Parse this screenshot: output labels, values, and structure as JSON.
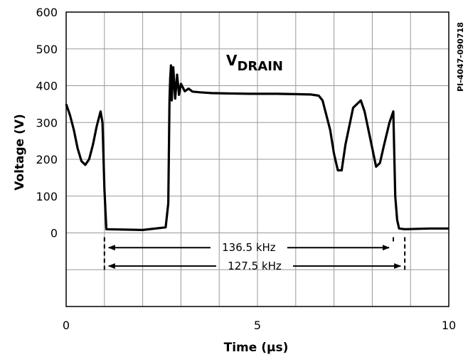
{
  "chart_data": {
    "type": "line",
    "title": "",
    "xlabel": "Time (µs)",
    "ylabel": "Voltage (V)",
    "xlim": [
      0,
      10
    ],
    "ylim": [
      -200,
      600
    ],
    "x_ticks": [
      0,
      5,
      10
    ],
    "y_ticks": [
      0,
      100,
      200,
      300,
      400,
      500,
      600
    ],
    "grid": true,
    "figure_id": "PI-4047-090718",
    "trace_label": {
      "main": "V",
      "subscript": "DRAIN"
    },
    "series": [
      {
        "x": [
          0.0,
          0.1,
          0.2,
          0.3,
          0.4,
          0.5,
          0.6,
          0.7,
          0.8,
          0.9,
          0.95,
          1.0,
          1.05,
          2.0,
          2.6,
          2.67,
          2.7,
          2.72,
          2.74,
          2.76,
          2.8,
          2.85,
          2.9,
          2.95,
          3.0,
          3.1,
          3.2,
          3.3,
          3.5,
          3.8,
          4.2,
          4.8,
          5.5,
          6.0,
          6.4,
          6.6,
          6.7,
          6.9,
          7.0,
          7.1,
          7.2,
          7.3,
          7.5,
          7.7,
          7.8,
          8.0,
          8.1,
          8.2,
          8.3,
          8.45,
          8.55,
          8.6,
          8.65,
          8.7,
          8.85,
          9.5,
          10.0
        ],
        "y": [
          350,
          320,
          280,
          230,
          195,
          185,
          200,
          240,
          290,
          330,
          300,
          120,
          10,
          8,
          15,
          80,
          360,
          420,
          455,
          360,
          450,
          365,
          430,
          375,
          405,
          385,
          392,
          384,
          382,
          380,
          379,
          378,
          378,
          377,
          376,
          373,
          360,
          280,
          215,
          170,
          170,
          240,
          340,
          360,
          330,
          230,
          180,
          190,
          235,
          300,
          330,
          100,
          35,
          12,
          10,
          12,
          12
        ]
      }
    ],
    "annotations": [
      {
        "label": "136.5 kHz",
        "x_start": 1.0,
        "x_end": 8.55
      },
      {
        "label": "127.5 kHz",
        "x_start": 1.0,
        "x_end": 8.85
      }
    ]
  }
}
